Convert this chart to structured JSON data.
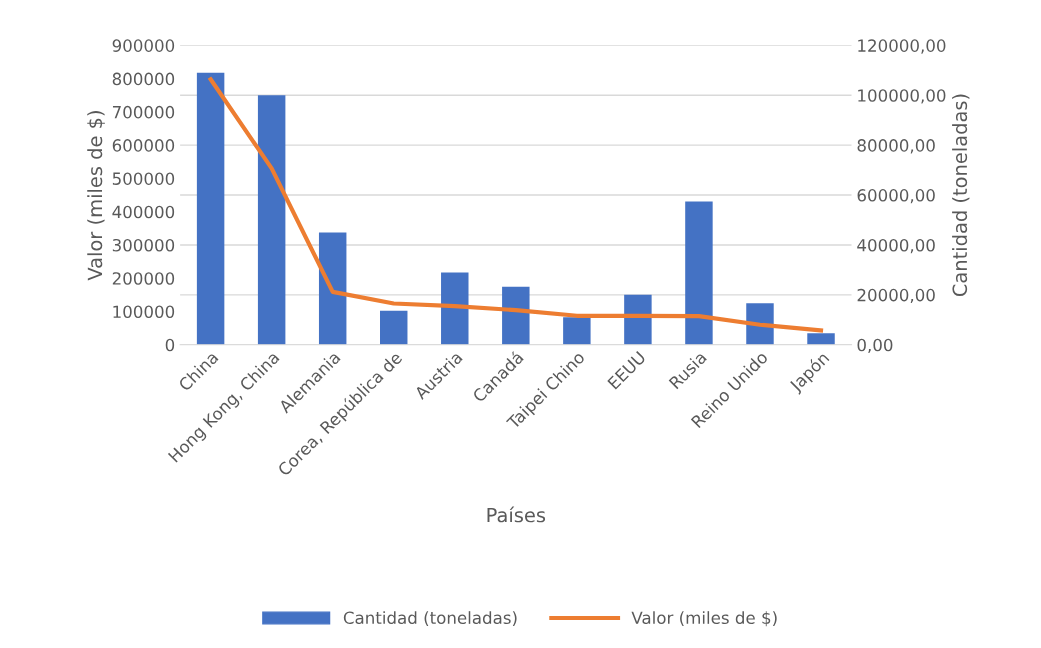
{
  "chart_data": {
    "type": "bar",
    "xlabel": "Países",
    "ylabel": "Valor (miles de $)",
    "y2label": "Cantidad (toneladas)",
    "categories": [
      "China",
      "Hong Kong, China",
      "Alemania",
      "Corea, República de",
      "Austria",
      "Canadá",
      "Taipei Chino",
      "EEUU",
      "Rusia",
      "Reino Unido",
      "Japón"
    ],
    "series": [
      {
        "name": "Cantidad (toneladas)",
        "axis": "y2",
        "color": "#4472c4",
        "values": [
          109000,
          100000,
          45000,
          13600,
          29000,
          23200,
          11000,
          20000,
          57400,
          16600,
          4600
        ]
      },
      {
        "name": "Valor (miles de $)",
        "type": "line",
        "axis": "y",
        "color": "#ed7d31",
        "values": [
          798000,
          530000,
          159000,
          124000,
          116000,
          104000,
          87000,
          87000,
          86000,
          60000,
          43000
        ]
      }
    ],
    "ylim": [
      0,
      900000
    ],
    "yticks": [
      0,
      100000,
      200000,
      300000,
      400000,
      500000,
      600000,
      700000,
      800000,
      900000
    ],
    "y2lim": [
      0,
      120000
    ],
    "y2ticks": [
      {
        "value": 0,
        "label": "0,00"
      },
      {
        "value": 20000,
        "label": "20000,00"
      },
      {
        "value": 40000,
        "label": "40000,00"
      },
      {
        "value": 60000,
        "label": "60000,00"
      },
      {
        "value": 80000,
        "label": "80000,00"
      },
      {
        "value": 100000,
        "label": "100000,00"
      },
      {
        "value": 120000,
        "label": "120000,00"
      }
    ],
    "grid": "y",
    "legend": "bottom",
    "marker": "none",
    "line_style": "solid"
  }
}
